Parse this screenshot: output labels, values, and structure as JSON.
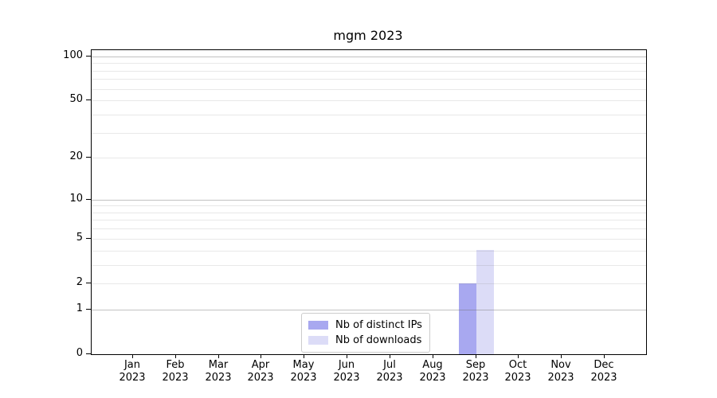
{
  "chart_data": {
    "type": "bar",
    "title": "mgm 2023",
    "categories": [
      "Jan 2023",
      "Feb 2023",
      "Mar 2023",
      "Apr 2023",
      "May 2023",
      "Jun 2023",
      "Jul 2023",
      "Aug 2023",
      "Sep 2023",
      "Oct 2023",
      "Nov 2023",
      "Dec 2023"
    ],
    "series": [
      {
        "name": "Nb of distinct IPs",
        "color": "#a8a8f0",
        "values": [
          0,
          0,
          0,
          0,
          0,
          0,
          0,
          0,
          2,
          0,
          0,
          0
        ]
      },
      {
        "name": "Nb of downloads",
        "color": "#dcdcf7",
        "values": [
          0,
          0,
          0,
          0,
          0,
          0,
          0,
          0,
          4,
          0,
          0,
          0
        ]
      }
    ],
    "yscale": "log1p",
    "ylim": [
      0,
      110
    ],
    "yticks": [
      0,
      1,
      2,
      5,
      10,
      20,
      50,
      100
    ],
    "grid": true,
    "legend_position": "lower-center-inside"
  }
}
